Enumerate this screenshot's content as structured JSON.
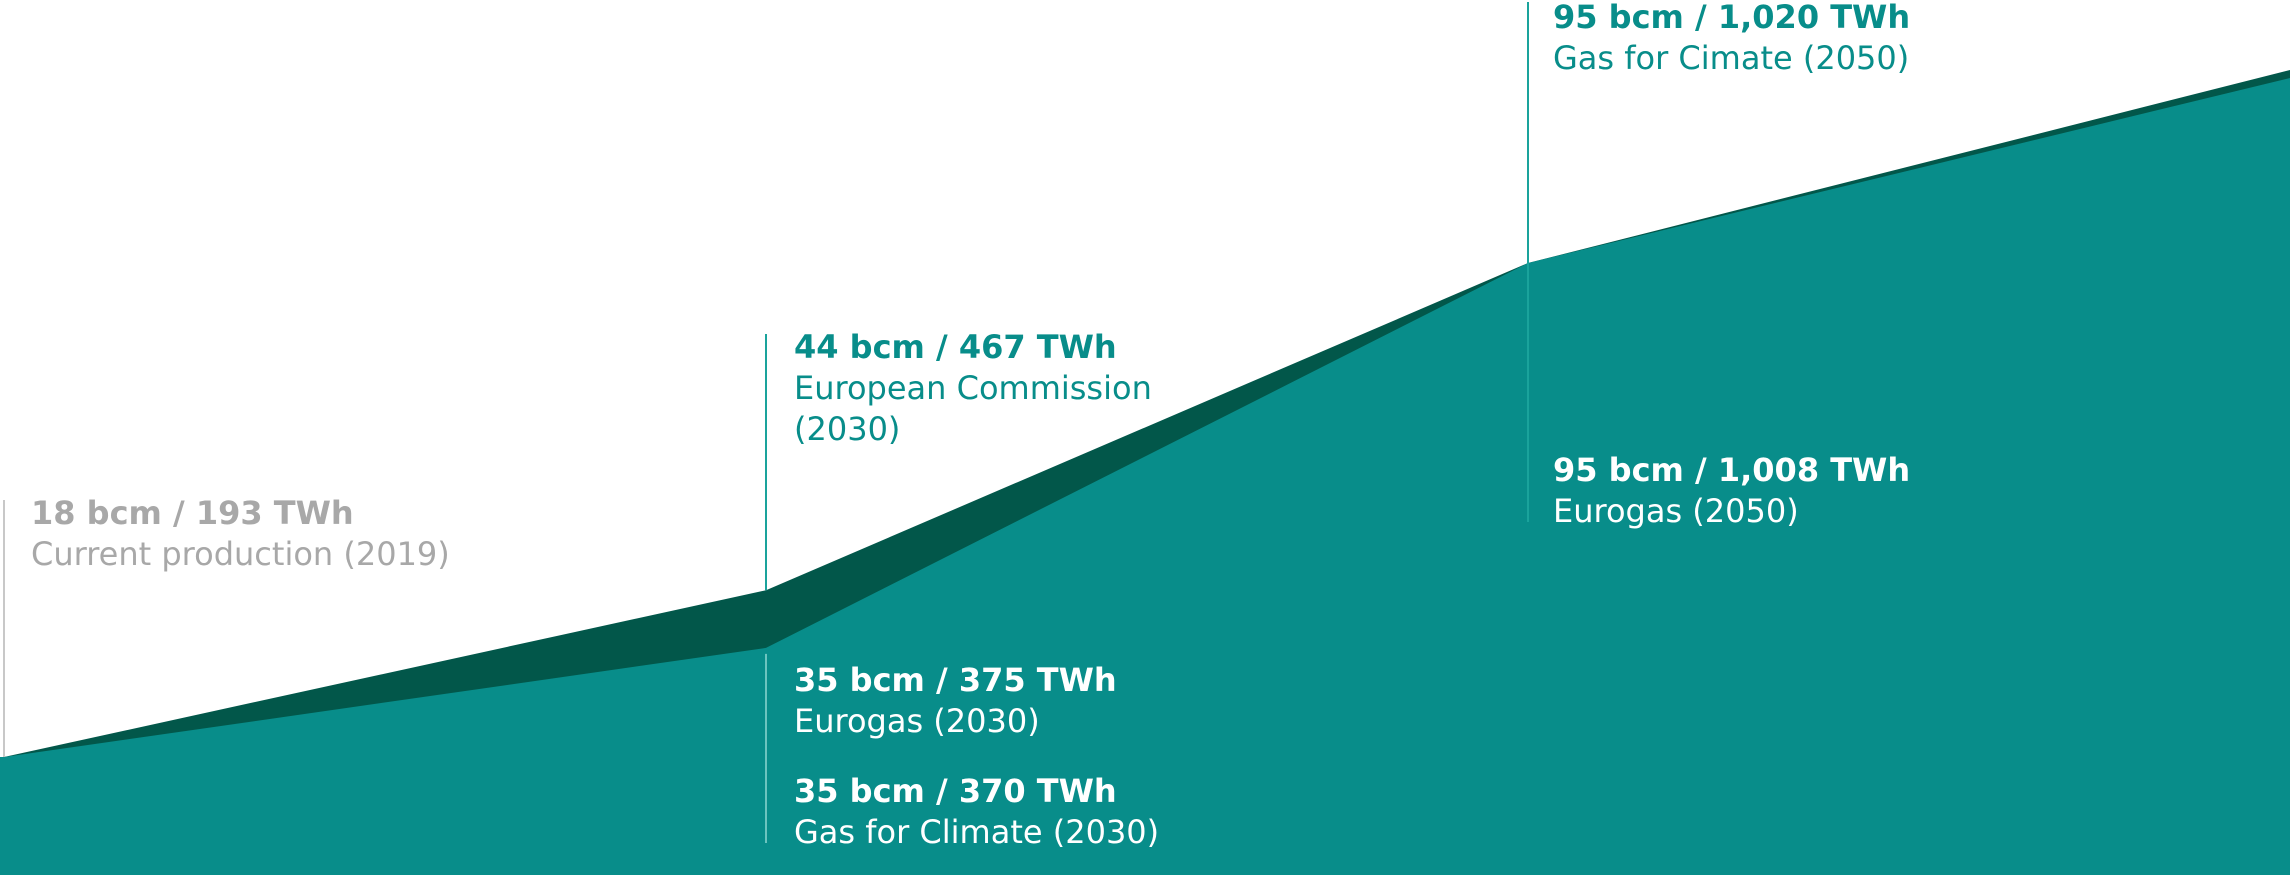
{
  "chart_data": {
    "type": "area",
    "title": "",
    "xlabel": "",
    "ylabel": "",
    "x": [
      2019,
      2030,
      2050
    ],
    "series": [
      {
        "values": [
          18,
          44,
          95
        ]
      },
      {
        "values": [
          18,
          35,
          95
        ]
      }
    ],
    "colors": {
      "upper_band": "#02574a",
      "lower_area": "#088d8a",
      "callout_line": "#1aa39c",
      "baseline_line": "#c8c8c8"
    },
    "annotations": [
      {
        "id": "current",
        "x": 2019,
        "y": 18,
        "value": "18 bcm / 193 TWh",
        "label": "Current production (2019)"
      },
      {
        "id": "ec2030",
        "x": 2030,
        "y": 44,
        "value": "44 bcm / 467 TWh",
        "label": "European Commission (2030)"
      },
      {
        "id": "eurogas2030",
        "x": 2030,
        "y": 35,
        "value": "35 bcm / 375 TWh",
        "label": "Eurogas (2030)"
      },
      {
        "id": "gfc2030",
        "x": 2030,
        "y": 35,
        "value": "35 bcm / 370 TWh",
        "label": "Gas for Climate (2030)"
      },
      {
        "id": "gfc2050",
        "x": 2050,
        "y": 95,
        "value": "95 bcm / 1,020 TWh",
        "label": "Gas for Cimate (2050)"
      },
      {
        "id": "eurogas2050",
        "x": 2050,
        "y": 95,
        "value": "95 bcm / 1,008 TWh",
        "label": "Eurogas (2050)"
      }
    ],
    "legend": "none",
    "grid": false
  },
  "labels": {
    "current": {
      "value": "18 bcm / 193 TWh",
      "label": "Current production (2019)"
    },
    "ec2030": {
      "value": "44 bcm / 467 TWh",
      "label_line1": "European Commission",
      "label_line2": "(2030)"
    },
    "eurogas2030": {
      "value": "35 bcm / 375 TWh",
      "label": "Eurogas (2030)"
    },
    "gfc2030": {
      "value": "35 bcm / 370 TWh",
      "label": "Gas for Climate (2030)"
    },
    "gfc2050": {
      "value": "95 bcm / 1,020 TWh",
      "label": "Gas for Cimate (2050)"
    },
    "eurogas2050": {
      "value": "95 bcm / 1,008 TWh",
      "label": "Eurogas (2050)"
    }
  }
}
